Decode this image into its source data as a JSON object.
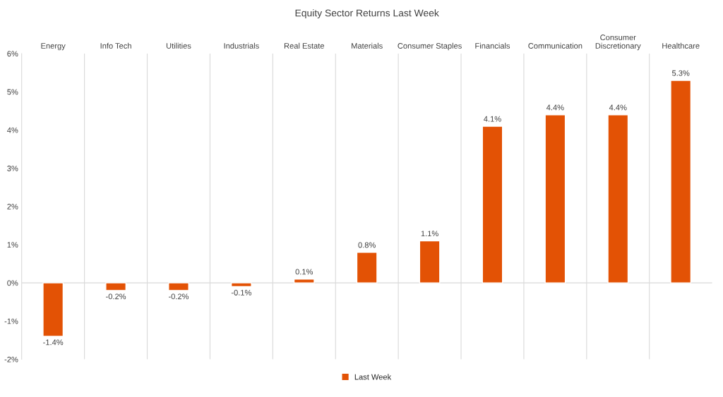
{
  "chart_data": {
    "type": "bar",
    "title": "Equity Sector Returns Last Week",
    "categories": [
      "Energy",
      "Info Tech",
      "Utilities",
      "Industrials",
      "Real Estate",
      "Materials",
      "Consumer Staples",
      "Financials",
      "Communication",
      "Consumer Discretionary",
      "Healthcare"
    ],
    "series": [
      {
        "name": "Last Week",
        "color": "#e35205",
        "values": [
          -1.4,
          -0.2,
          -0.2,
          -0.1,
          0.1,
          0.8,
          1.1,
          4.1,
          4.4,
          4.4,
          5.3
        ],
        "value_labels": [
          "-1.4%",
          "-0.2%",
          "-0.2%",
          "-0.1%",
          "0.1%",
          "0.8%",
          "1.1%",
          "4.1%",
          "4.4%",
          "4.4%",
          "5.3%"
        ]
      }
    ],
    "ylim": [
      -2,
      6
    ],
    "yticks": [
      {
        "value": -2,
        "label": "-2%"
      },
      {
        "value": -1,
        "label": "-1%"
      },
      {
        "value": 0,
        "label": "0%"
      },
      {
        "value": 1,
        "label": "1%"
      },
      {
        "value": 2,
        "label": "2%"
      },
      {
        "value": 3,
        "label": "3%"
      },
      {
        "value": 4,
        "label": "4%"
      },
      {
        "value": 5,
        "label": "5%"
      },
      {
        "value": 6,
        "label": "6%"
      }
    ],
    "ref_lines": [
      {
        "axis": "y",
        "value": 0,
        "color": "#d9d9d9"
      }
    ],
    "grid": "x",
    "legend": "bottom"
  }
}
